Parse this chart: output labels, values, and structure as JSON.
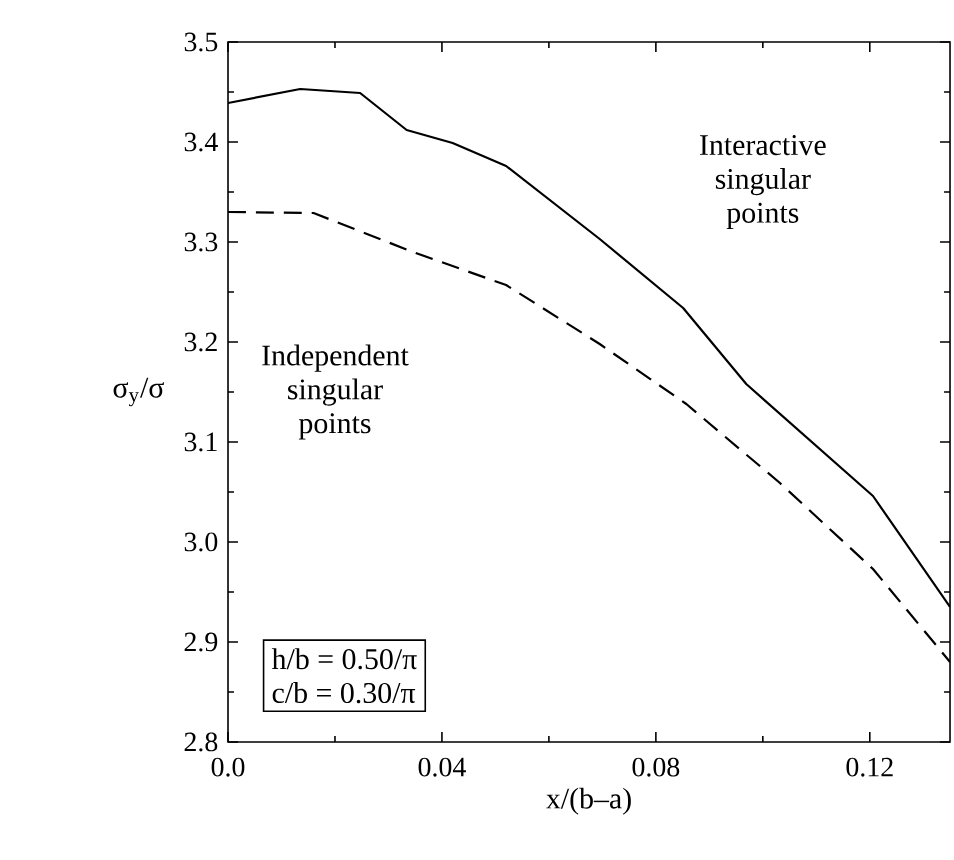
{
  "chart_data": {
    "type": "line",
    "xlabel": "x/(b–a)",
    "ylabel": "σ$_{y}$/σ",
    "xlim": [
      0,
      0.135
    ],
    "ylim": [
      2.8,
      3.5
    ],
    "xticks": [
      {
        "value": 0,
        "label": "0.0"
      },
      0.04,
      0.08,
      0.12
    ],
    "yticks": [
      2.8,
      2.9,
      {
        "value": 3.0,
        "label": "3.0"
      },
      3.1,
      3.2,
      3.3,
      3.4,
      3.5
    ],
    "grid": false,
    "marker": "none",
    "annotations": [
      "Interactive singular points",
      "Independent singular points",
      "h/b = 0.50/π",
      "c/b = 0.30/π"
    ],
    "series": [
      {
        "color": "#000000",
        "line_style": "solid",
        "x": [
          0,
          0.0135,
          0.0247,
          0.0334,
          0.042,
          0.052,
          0.0695,
          0.0851,
          0.0969,
          0.1206,
          0.135
        ],
        "values": [
          3.439,
          3.453,
          3.449,
          3.412,
          3.399,
          3.376,
          3.303,
          3.234,
          3.158,
          3.046,
          2.935
        ]
      },
      {
        "color": "#000000",
        "line_style": "dashed",
        "x": [
          0,
          0.016,
          0.0346,
          0.052,
          0.0695,
          0.0857,
          0.1032,
          0.1206,
          0.135
        ],
        "values": [
          3.33,
          3.329,
          3.29,
          3.257,
          3.198,
          3.138,
          3.059,
          2.973,
          2.88
        ]
      }
    ]
  }
}
